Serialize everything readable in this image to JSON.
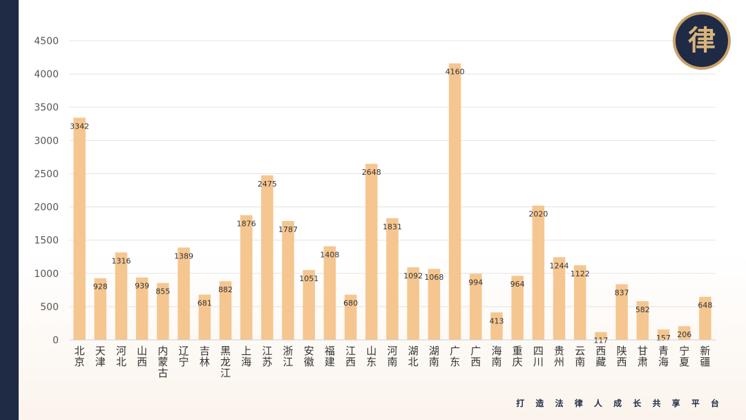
{
  "logo": {
    "char": "律",
    "icon": "law-firm-logo-icon"
  },
  "slogan": "打 造 法 律 人 成 长 共 享 平 台",
  "colors": {
    "bar": "#f5c690",
    "grid": "#e3e3e3",
    "text": "#444444",
    "accent": "#1f2a44",
    "gold": "#c9a26a"
  },
  "chart_data": {
    "type": "bar",
    "title": "",
    "xlabel": "",
    "ylabel": "",
    "ylim": [
      0,
      4500
    ],
    "yticks": [
      0,
      500,
      1000,
      1500,
      2000,
      2500,
      3000,
      3500,
      4000,
      4500
    ],
    "grid": true,
    "categories": [
      "北京",
      "天津",
      "河北",
      "山西",
      "内蒙古",
      "辽宁",
      "吉林",
      "黑龙江",
      "上海",
      "江苏",
      "浙江",
      "安徽",
      "福建",
      "江西",
      "山东",
      "河南",
      "湖北",
      "湖南",
      "广东",
      "广西",
      "海南",
      "重庆",
      "四川",
      "贵州",
      "云南",
      "西藏",
      "陕西",
      "甘肃",
      "青海",
      "宁夏",
      "新疆"
    ],
    "values": [
      3342,
      928,
      1316,
      939,
      855,
      1389,
      681,
      882,
      1876,
      2475,
      1787,
      1051,
      1408,
      680,
      2648,
      1831,
      1092,
      1068,
      4160,
      994,
      413,
      964,
      2020,
      1244,
      1122,
      117,
      837,
      582,
      157,
      206,
      648
    ]
  }
}
